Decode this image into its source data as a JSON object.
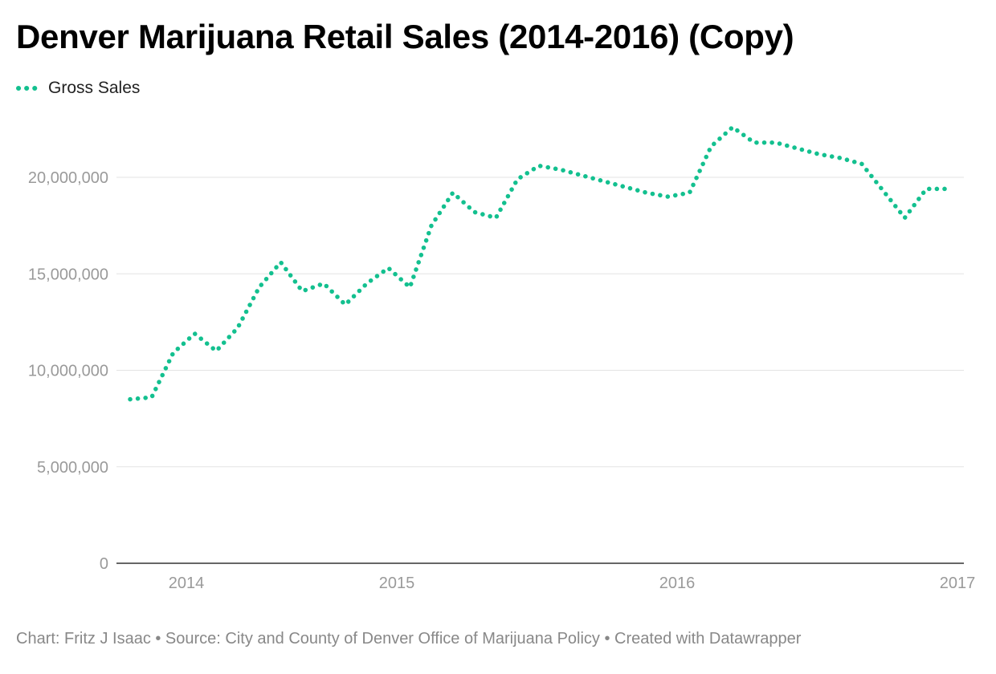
{
  "chart_data": {
    "type": "line",
    "title": "Denver Marijuana Retail Sales (2014-2016) (Copy)",
    "legend": [
      {
        "name": "Gross Sales",
        "color": "#13c08f",
        "style": "dotted"
      }
    ],
    "x_ticks": [
      {
        "label": "2014",
        "value": 2014.0
      },
      {
        "label": "2015",
        "value": 2015.0
      },
      {
        "label": "2016",
        "value": 2016.0
      },
      {
        "label": "2017",
        "value": 2017.0
      }
    ],
    "y_ticks": [
      {
        "label": "0",
        "value": 0
      },
      {
        "label": "5,000,000",
        "value": 5000000
      },
      {
        "label": "10,000,000",
        "value": 10000000
      },
      {
        "label": "15,000,000",
        "value": 15000000
      },
      {
        "label": "20,000,000",
        "value": 20000000
      }
    ],
    "xlim": [
      2013.75,
      2017.0
    ],
    "ylim": [
      0,
      24000000
    ],
    "series": [
      {
        "name": "Gross Sales",
        "x": [
          2013.8,
          2013.9,
          2014.0,
          2014.08,
          2014.17,
          2014.25,
          2014.33,
          2014.42,
          2014.5,
          2014.58,
          2014.67,
          2014.75,
          2014.83,
          2014.92,
          2015.0,
          2015.08,
          2015.17,
          2015.25,
          2015.33,
          2015.42,
          2015.5,
          2015.58,
          2015.67,
          2015.75,
          2015.83,
          2015.92,
          2016.0,
          2016.08,
          2016.17,
          2016.25,
          2016.33,
          2016.42,
          2016.5,
          2016.58,
          2016.67,
          2016.75,
          2016.83,
          2016.92,
          2017.0
        ],
        "values": [
          8500000,
          8600000,
          10900000,
          11900000,
          11000000,
          12200000,
          14300000,
          15600000,
          14100000,
          14500000,
          13400000,
          14500000,
          15300000,
          14300000,
          17500000,
          19200000,
          18200000,
          17900000,
          19900000,
          20600000,
          20400000,
          20100000,
          19800000,
          19500000,
          19200000,
          19000000,
          19200000,
          21600000,
          22600000,
          21800000,
          21800000,
          21500000,
          21200000,
          21000000,
          20700000,
          19300000,
          17900000,
          19400000,
          19400000
        ]
      }
    ],
    "footer": "Chart: Fritz J Isaac • Source: City and County of Denver Office of Marijuana Policy • Created with Datawrapper"
  }
}
